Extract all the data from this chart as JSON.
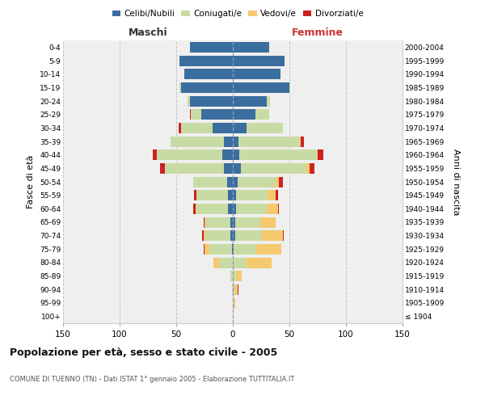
{
  "age_groups": [
    "100+",
    "95-99",
    "90-94",
    "85-89",
    "80-84",
    "75-79",
    "70-74",
    "65-69",
    "60-64",
    "55-59",
    "50-54",
    "45-49",
    "40-44",
    "35-39",
    "30-34",
    "25-29",
    "20-24",
    "15-19",
    "10-14",
    "5-9",
    "0-4"
  ],
  "birth_years": [
    "≤ 1904",
    "1905-1909",
    "1910-1914",
    "1915-1919",
    "1920-1924",
    "1925-1929",
    "1930-1934",
    "1935-1939",
    "1940-1944",
    "1945-1949",
    "1950-1954",
    "1955-1959",
    "1960-1964",
    "1965-1969",
    "1970-1974",
    "1975-1979",
    "1980-1984",
    "1985-1989",
    "1990-1994",
    "1995-1999",
    "2000-2004"
  ],
  "male_celibi": [
    0,
    0,
    0,
    0,
    0,
    1,
    2,
    2,
    4,
    4,
    5,
    8,
    9,
    8,
    18,
    28,
    38,
    46,
    43,
    47,
    38
  ],
  "male_coniugati": [
    0,
    0,
    1,
    2,
    12,
    20,
    22,
    22,
    28,
    28,
    30,
    52,
    58,
    47,
    28,
    9,
    2,
    1,
    0,
    0,
    0
  ],
  "male_vedovi": [
    0,
    0,
    0,
    0,
    5,
    4,
    2,
    1,
    1,
    0,
    0,
    0,
    0,
    0,
    0,
    0,
    0,
    0,
    0,
    0,
    0
  ],
  "male_divorziati": [
    0,
    0,
    0,
    0,
    0,
    1,
    1,
    1,
    2,
    2,
    0,
    4,
    4,
    0,
    2,
    1,
    0,
    0,
    0,
    0,
    0
  ],
  "female_nubili": [
    0,
    0,
    0,
    0,
    0,
    1,
    2,
    2,
    3,
    3,
    4,
    7,
    6,
    5,
    12,
    20,
    30,
    50,
    42,
    46,
    32
  ],
  "female_coniugate": [
    0,
    1,
    2,
    3,
    12,
    20,
    24,
    22,
    27,
    28,
    34,
    58,
    68,
    54,
    32,
    12,
    3,
    1,
    0,
    0,
    0
  ],
  "female_vedove": [
    0,
    1,
    2,
    5,
    22,
    22,
    18,
    14,
    10,
    7,
    3,
    3,
    1,
    1,
    0,
    0,
    0,
    0,
    0,
    0,
    0
  ],
  "female_divorziate": [
    0,
    0,
    1,
    0,
    0,
    0,
    1,
    0,
    1,
    2,
    3,
    4,
    5,
    3,
    0,
    0,
    0,
    0,
    0,
    0,
    0
  ],
  "color_celibi": "#3a6e9f",
  "color_coniugati": "#c9dba4",
  "color_vedovi": "#f5c96e",
  "color_divorziati": "#cc2222",
  "xlim": 150,
  "title": "Popolazione per età, sesso e stato civile - 2005",
  "subtitle": "COMUNE DI TUENNO (TN) - Dati ISTAT 1° gennaio 2005 - Elaborazione TUTTITALIA.IT",
  "legend_labels": [
    "Celibi/Nubili",
    "Coniugati/e",
    "Vedovi/e",
    "Divorziati/e"
  ],
  "ylabel_left": "Fasce di età",
  "ylabel_right": "Anni di nascita",
  "header_left": "Maschi",
  "header_right": "Femmine",
  "bg_color": "#ffffff",
  "plot_bg": "#efefef"
}
